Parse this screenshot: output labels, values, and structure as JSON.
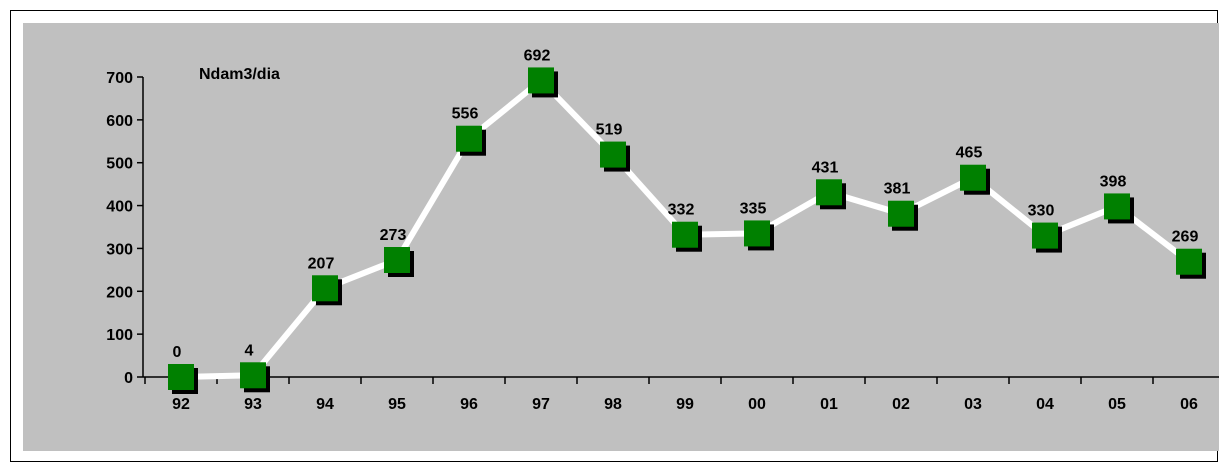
{
  "chart_data": {
    "type": "line",
    "unit_label": "Ndam3/dia",
    "categories": [
      "92",
      "93",
      "94",
      "95",
      "96",
      "97",
      "98",
      "99",
      "00",
      "01",
      "02",
      "03",
      "04",
      "05",
      "06"
    ],
    "series": [
      {
        "values": [
          0,
          4,
          207,
          273,
          556,
          692,
          519,
          332,
          335,
          431,
          381,
          465,
          330,
          398,
          269
        ]
      }
    ],
    "yticks": [
      0,
      100,
      200,
      300,
      400,
      500,
      600,
      700
    ],
    "ylim": [
      0,
      700
    ],
    "grid": false,
    "legend": "none",
    "colors": {
      "plot_background": "#c0c0c0",
      "line": "#ffffff",
      "marker": "#008000",
      "marker_shadow": "#000000",
      "axis": "#000000"
    }
  }
}
